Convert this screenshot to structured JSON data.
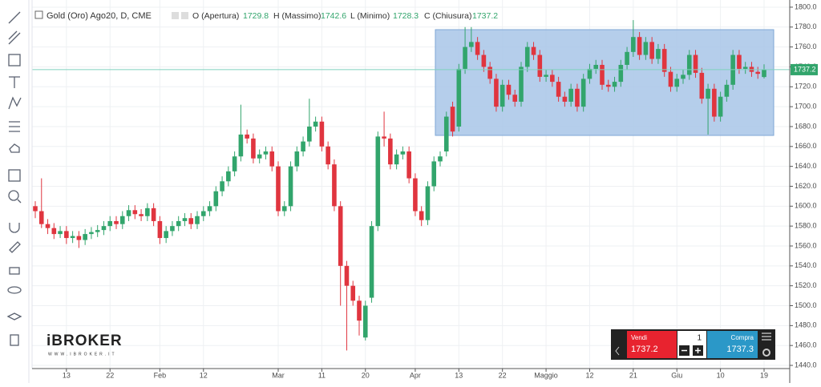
{
  "chart_data": {
    "type": "candlestick",
    "title": "Gold (Oro) Ago20, D, CME",
    "ohlc_labels": [
      "O (Apertura)",
      "H (Massimo)",
      "L (Minimo)",
      "C (Chiusura)"
    ],
    "up_color": "#32a56c",
    "down_color": "#e0353f",
    "categories": [
      null,
      null,
      null,
      null,
      null,
      "13",
      null,
      null,
      null,
      null,
      null,
      null,
      "22",
      null,
      null,
      null,
      null,
      null,
      null,
      null,
      "Feb",
      null,
      null,
      null,
      null,
      null,
      null,
      "12",
      null,
      null,
      null,
      null,
      null,
      null,
      null,
      null,
      null,
      null,
      null,
      "Mar",
      null,
      null,
      null,
      null,
      null,
      null,
      "11",
      null,
      null,
      null,
      null,
      null,
      null,
      "20",
      null,
      null,
      null,
      null,
      null,
      null,
      null,
      "Apr",
      null,
      null,
      null,
      null,
      null,
      null,
      "13",
      null,
      null,
      null,
      null,
      null,
      null,
      "22",
      null,
      null,
      null,
      null,
      null,
      null,
      "Maggio",
      null,
      null,
      null,
      null,
      null,
      null,
      "12",
      null,
      null,
      null,
      null,
      null,
      null,
      "21",
      null,
      null,
      null,
      null,
      null,
      null,
      "Giu",
      null,
      null,
      null,
      null,
      null,
      null,
      "10",
      null,
      null,
      null,
      null,
      null,
      null,
      "19"
    ],
    "open": [
      1600,
      1595,
      1582,
      1578,
      1572,
      1575,
      1568,
      1570,
      1566,
      1572,
      1574,
      1576,
      1580,
      1585,
      1582,
      1590,
      1596,
      1592,
      1590,
      1598,
      1585,
      1568,
      1575,
      1580,
      1585,
      1588,
      1582,
      1590,
      1595,
      1600,
      1615,
      1625,
      1635,
      1650,
      1672,
      1668,
      1648,
      1652,
      1655,
      1640,
      1595,
      1600,
      1640,
      1655,
      1665,
      1680,
      1685,
      1660,
      1642,
      1600,
      1540,
      1520,
      1505,
      1468,
      1508,
      1580,
      1670,
      1668,
      1642,
      1652,
      1655,
      1628,
      1595,
      1586,
      1620,
      1645,
      1655,
      1700,
      1680,
      1738,
      1760,
      1765,
      1752,
      1740,
      1728,
      1700,
      1722,
      1712,
      1705,
      1740,
      1760,
      1752,
      1730,
      1732,
      1725,
      1710,
      1705,
      1718,
      1700,
      1728,
      1738,
      1742,
      1722,
      1720,
      1725,
      1742,
      1755,
      1770,
      1752,
      1765,
      1748,
      1758,
      1735,
      1720,
      1728,
      1732,
      1752,
      1734,
      1708,
      1718,
      1690,
      1710,
      1722,
      1752,
      1738,
      1740,
      1735,
      1729.8
    ],
    "high": [
      1605,
      1628,
      1587,
      1583,
      1580,
      1580,
      1575,
      1575,
      1577,
      1579,
      1581,
      1585,
      1590,
      1590,
      1595,
      1601,
      1601,
      1597,
      1603,
      1603,
      1590,
      1580,
      1585,
      1590,
      1593,
      1593,
      1595,
      1600,
      1605,
      1620,
      1630,
      1640,
      1655,
      1702,
      1677,
      1673,
      1657,
      1660,
      1660,
      1645,
      1605,
      1645,
      1660,
      1670,
      1708,
      1690,
      1690,
      1665,
      1647,
      1605,
      1545,
      1525,
      1510,
      1505,
      1585,
      1675,
      1695,
      1673,
      1657,
      1660,
      1660,
      1633,
      1600,
      1625,
      1650,
      1655,
      1695,
      1705,
      1743,
      1780,
      1780,
      1770,
      1757,
      1745,
      1733,
      1727,
      1727,
      1717,
      1745,
      1765,
      1765,
      1757,
      1737,
      1737,
      1730,
      1715,
      1723,
      1723,
      1733,
      1743,
      1747,
      1747,
      1727,
      1730,
      1747,
      1760,
      1787,
      1775,
      1770,
      1770,
      1763,
      1763,
      1740,
      1733,
      1737,
      1757,
      1757,
      1739,
      1723,
      1723,
      1715,
      1727,
      1757,
      1757,
      1745,
      1745,
      1740,
      1742.6
    ],
    "low": [
      1588,
      1578,
      1572,
      1567,
      1568,
      1562,
      1563,
      1558,
      1561,
      1567,
      1569,
      1571,
      1575,
      1577,
      1577,
      1585,
      1587,
      1585,
      1585,
      1580,
      1562,
      1563,
      1570,
      1575,
      1580,
      1577,
      1577,
      1585,
      1590,
      1595,
      1610,
      1620,
      1630,
      1645,
      1663,
      1643,
      1643,
      1647,
      1635,
      1590,
      1590,
      1595,
      1635,
      1650,
      1660,
      1675,
      1655,
      1637,
      1595,
      1500,
      1455,
      1500,
      1470,
      1465,
      1503,
      1575,
      1660,
      1637,
      1637,
      1647,
      1623,
      1590,
      1580,
      1581,
      1615,
      1640,
      1650,
      1670,
      1675,
      1733,
      1755,
      1747,
      1735,
      1723,
      1695,
      1695,
      1707,
      1700,
      1700,
      1735,
      1747,
      1725,
      1725,
      1720,
      1705,
      1700,
      1700,
      1695,
      1695,
      1723,
      1733,
      1717,
      1715,
      1715,
      1720,
      1737,
      1750,
      1747,
      1747,
      1743,
      1743,
      1730,
      1715,
      1715,
      1723,
      1727,
      1729,
      1703,
      1672,
      1685,
      1685,
      1705,
      1717,
      1733,
      1733,
      1730,
      1728,
      1728.3
    ],
    "close": [
      1595,
      1582,
      1578,
      1572,
      1575,
      1568,
      1570,
      1566,
      1572,
      1574,
      1576,
      1580,
      1585,
      1582,
      1590,
      1596,
      1592,
      1590,
      1598,
      1585,
      1568,
      1575,
      1580,
      1585,
      1588,
      1582,
      1590,
      1595,
      1600,
      1615,
      1625,
      1635,
      1650,
      1672,
      1668,
      1648,
      1652,
      1655,
      1640,
      1595,
      1600,
      1640,
      1655,
      1665,
      1680,
      1685,
      1660,
      1642,
      1600,
      1540,
      1520,
      1505,
      1485,
      1500,
      1580,
      1670,
      1668,
      1642,
      1652,
      1655,
      1628,
      1595,
      1586,
      1620,
      1645,
      1650,
      1690,
      1675,
      1738,
      1760,
      1765,
      1752,
      1740,
      1728,
      1700,
      1722,
      1712,
      1705,
      1740,
      1760,
      1752,
      1730,
      1732,
      1725,
      1710,
      1705,
      1718,
      1700,
      1728,
      1738,
      1742,
      1722,
      1720,
      1725,
      1742,
      1755,
      1770,
      1752,
      1765,
      1748,
      1758,
      1735,
      1720,
      1728,
      1732,
      1752,
      1734,
      1708,
      1718,
      1690,
      1710,
      1722,
      1752,
      1738,
      1740,
      1735,
      1733,
      1737.2
    ],
    "ylim": [
      1436.8,
      1807.2
    ],
    "yticks": [
      {
        "value": 1440,
        "label": "1440.0"
      },
      {
        "value": 1460,
        "label": "1460.0"
      },
      {
        "value": 1480,
        "label": "1480.0"
      },
      {
        "value": 1500,
        "label": "1500.0"
      },
      {
        "value": 1520,
        "label": "1520.0"
      },
      {
        "value": 1540,
        "label": "1540.0"
      },
      {
        "value": 1560,
        "label": "1560.0"
      },
      {
        "value": 1580,
        "label": "1580.0"
      },
      {
        "value": 1600,
        "label": "1600.0"
      },
      {
        "value": 1620,
        "label": "1620.0"
      },
      {
        "value": 1640,
        "label": "1640.0"
      },
      {
        "value": 1660,
        "label": "1660.0"
      },
      {
        "value": 1680,
        "label": "1680.0"
      },
      {
        "value": 1700,
        "label": "1700.0"
      },
      {
        "value": 1720,
        "label": "1720.0"
      },
      {
        "value": 1740,
        "label": "1740.0"
      },
      {
        "value": 1760,
        "label": "1760.0"
      },
      {
        "value": 1780,
        "label": "1780.0"
      },
      {
        "value": 1800,
        "label": "1800.0"
      }
    ],
    "grid": true
  },
  "logo": {
    "name": "iBROKER",
    "url": "WWW.IBROKER.IT"
  },
  "trade": {
    "sell_label": "Vendi",
    "buy_label": "Compra",
    "quantity": 1,
    "buy": 1737.3
  }
}
